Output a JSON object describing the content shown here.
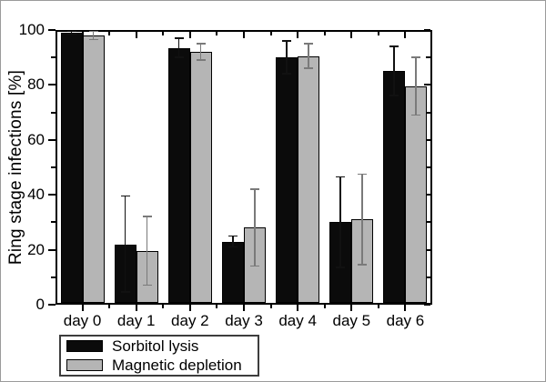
{
  "style": {
    "background": "#ffffff",
    "outer_border": "#9a9a9a",
    "axis_color": "#000000",
    "text_color": "#000000",
    "bar_border": "#000000",
    "legend_border": "#3d3d3d"
  },
  "chart_data": {
    "type": "bar",
    "title": "",
    "xlabel": "",
    "ylabel": "Ring stage infections [%]",
    "ylim": [
      0,
      100
    ],
    "y_major_ticks": [
      0,
      20,
      40,
      60,
      80,
      100
    ],
    "y_minor_ticks": [
      10,
      30,
      50,
      70,
      90
    ],
    "grid": false,
    "legend_position": "bottom-left-below-axis",
    "categories": [
      "day 0",
      "day 1",
      "day 2",
      "day 3",
      "day 4",
      "day 5",
      "day 6"
    ],
    "series": [
      {
        "name": "Sorbitol lysis",
        "color": "#0b0b0b",
        "error_color": "#111111",
        "values": [
          99,
          22,
          93.5,
          23,
          90,
          30,
          85
        ],
        "errors": [
          0.5,
          17.5,
          3.5,
          2,
          6,
          16.5,
          9
        ]
      },
      {
        "name": "Magnetic depletion",
        "color": "#b5b5b5",
        "error_color": "#7a7a7a",
        "values": [
          98,
          19.5,
          92,
          28,
          90.5,
          31,
          79.5
        ],
        "errors": [
          1.5,
          12.5,
          3,
          14,
          4.5,
          16.5,
          10.5
        ]
      }
    ]
  }
}
